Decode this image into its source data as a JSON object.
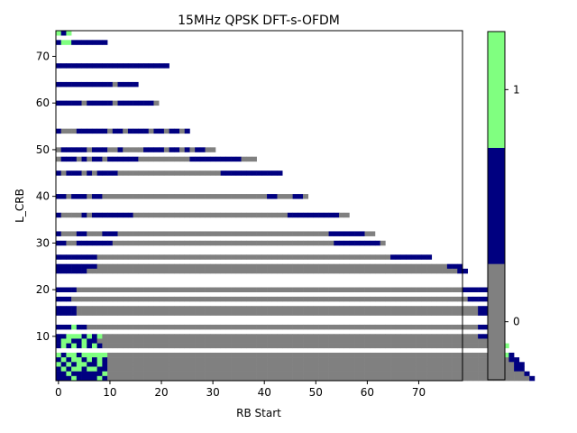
{
  "chart_data": {
    "type": "heatmap",
    "title": "15MHz QPSK DFT-s-OFDM",
    "xlabel": "RB Start",
    "ylabel": "L_CRB",
    "xlim": [
      -0.5,
      78.5
    ],
    "ylim": [
      0.5,
      75.5
    ],
    "xticks": [
      0,
      10,
      20,
      30,
      40,
      50,
      60,
      70
    ],
    "yticks": [
      10,
      20,
      30,
      40,
      50,
      60,
      70
    ],
    "grid": false,
    "colors": {
      "0": "#808080",
      "0.5": "#000080",
      "1": "#80ff80",
      "background": "#ffffff"
    },
    "colorbar": {
      "segments": [
        {
          "value": 0,
          "color": "#808080"
        },
        {
          "value": 0.5,
          "color": "#000080"
        },
        {
          "value": 1,
          "color": "#80ff80"
        }
      ],
      "ticks": [
        0,
        1
      ]
    },
    "rows": [
      {
        "L": 75,
        "cells": "1?1"
      },
      {
        "L": 73,
        "cells": "?11???????"
      },
      {
        "L": 68,
        "cells": "??????????????????????"
      },
      {
        "L": 64,
        "cells": "???????????0????"
      },
      {
        "L": 60,
        "cells": "?????0?????0???????0"
      },
      {
        "L": 54,
        "cells": "?000??????0??0????0??0??0?"
      },
      {
        "L": 50,
        "cells": "0?????0???00?0000????0??0?0??00"
      },
      {
        "L": 48,
        "cells": "0???0?0??0??????0000000000??????????000"
      },
      {
        "L": 45,
        "cells": "?0???0?0????00000000000000000000????????????"
      },
      {
        "L": 40,
        "cells": "??0???0??00000000000000000000000000000000??000??0"
      },
      {
        "L": 36,
        "cells": "?0000?0????????000000000000000000000000000000??????????00"
      },
      {
        "L": 32,
        "cells": "?000??000???00000000000000000000000000000000000000000???????00"
      },
      {
        "L": 30,
        "cells": "??00???????0000000000000000000000000000000000000000000?????????0"
      },
      {
        "L": 27,
        "cells": "????????000000000000000000000000000000000000000000000000000000000????????"
      },
      {
        "L": 25,
        "cells": "????????00000000000000000000000000000000000000000000000000000000000000000000???"
      },
      {
        "L": 24,
        "cells": "??????000000000000000000000000000000000000000000000000000000000000000000000000??"
      },
      {
        "L": 20,
        "cells": "????000000000000000000000000000000000000000000000000000000000000000000000000000???????"
      },
      {
        "L": 18,
        "cells": "???00000000000000000000000000000000000000000000000000000000000000000000000000000??????"
      },
      {
        "L": 16,
        "cells": "????000000000000000000000000000000000000000000000000000000000000000000000000000000????"
      },
      {
        "L": 15,
        "cells": "????000000000000000000000000000000000000000000000000000000000000000000000000000000????"
      },
      {
        "L": 12,
        "cells": "???1??0000000000000000000000000000000000000000000000000000000000000000000000000000????"
      },
      {
        "L": 10,
        "cells": "??111?1?10000000000000000000000000000000000000000000000000000000000000000000000000???1"
      },
      {
        "L": 9,
        "cells": "?11??1??0000000000000000000000000000000000000000000000000000000000000000000000000000???"
      },
      {
        "L": 8,
        "cells": "?1?1?1?1?0000000000000000000000000000000000000000000000000000000000000000000000000000??1"
      },
      {
        "L": 6,
        "cells": "1?11?11111000000000000000000000000000000000000000000000000000000000000000000000000000001?"
      },
      {
        "L": 5,
        "cells": "?1?11?1?1?000000000000000000000000000000000000000000000000000000000000000000000000000000??"
      },
      {
        "L": 4,
        "cells": "1?1?11??1?0000000000000000000000000000000000000000000000000000000000000000000000000000000??"
      },
      {
        "L": 3,
        "cells": "?1?11?11??0000000000000000000000000000000000000000000000000000000000000000000000000000000??"
      },
      {
        "L": 2,
        "cells": "??1??????1000000000000000000000000000000000000000000000000000000000000000000000000000000000?"
      },
      {
        "L": 1,
        "cells": "???1????1?0000000000000000000000000000000000000000000000000000000000000000000000000000000000?"
      }
    ]
  },
  "legend_note": ""
}
